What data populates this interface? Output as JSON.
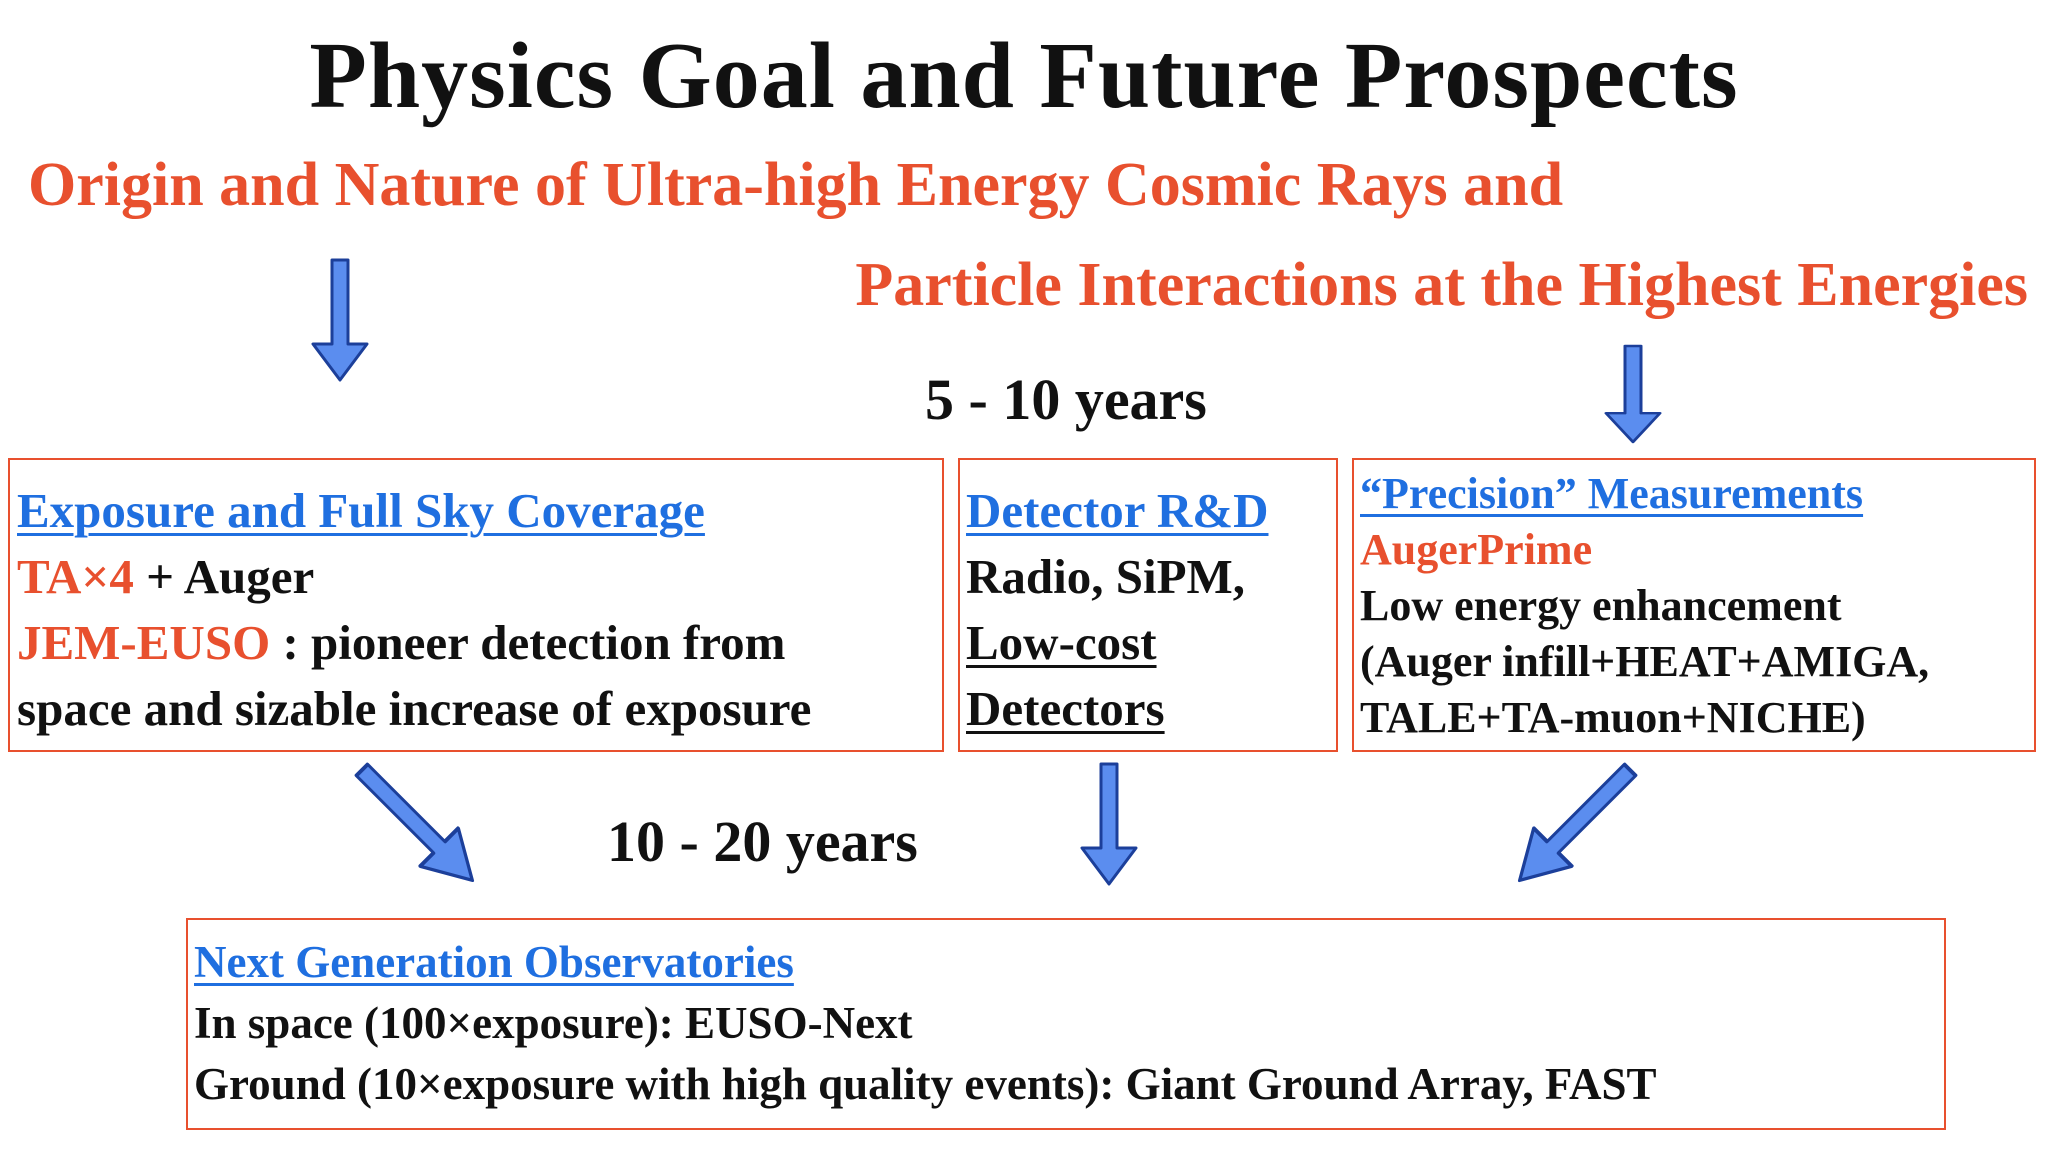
{
  "title": "Physics Goal and Future Prospects",
  "subtitle": {
    "line1": "Origin and Nature of Ultra-high Energy Cosmic Rays and",
    "line2": "Particle Interactions at the Highest Energies"
  },
  "periods": {
    "short": "5 - 10 years",
    "long": "10 - 20 years"
  },
  "box_exposure": {
    "heading": "Exposure and Full Sky Coverage",
    "ta": "TA×4",
    "ta_rest": " + Auger",
    "jem": "JEM-EUSO",
    "jem_rest": " : pioneer detection from",
    "line4": "space and sizable increase of exposure"
  },
  "box_detector": {
    "heading": "Detector R&D",
    "line2": "Radio, SiPM,",
    "line3": "Low-cost",
    "line4": "Detectors"
  },
  "box_precision": {
    "heading": "“Precision” Measurements",
    "line2": "AugerPrime",
    "line3": "Low energy enhancement",
    "line4": "(Auger infill+HEAT+AMIGA,",
    "line5": "TALE+TA-muon+NICHE)"
  },
  "box_next": {
    "heading": "Next Generation Observatories",
    "line2": "In space (100×exposure): EUSO-Next",
    "line3": "Ground (10×exposure with high quality events): Giant Ground Array, FAST"
  },
  "colors": {
    "accent_red": "#e8502e",
    "heading_blue": "#1f6fe0",
    "arrow_fill": "#5b8def",
    "arrow_stroke": "#1c3f9a"
  }
}
